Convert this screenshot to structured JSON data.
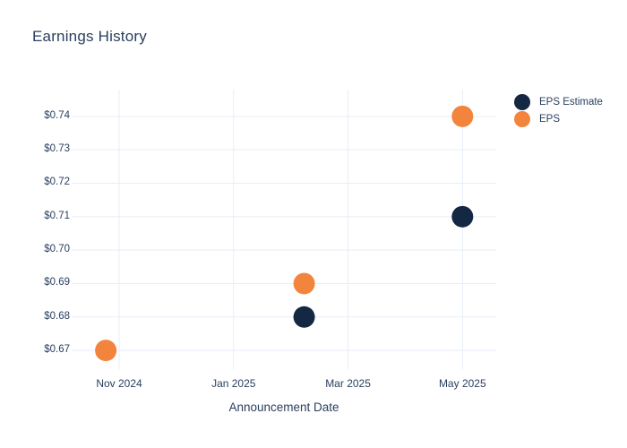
{
  "title": "Earnings History",
  "colors": {
    "background": "#ffffff",
    "text": "#2a3f5f",
    "gridline": "#e8edf6",
    "eps_estimate": "#142743",
    "eps": "#f3843e"
  },
  "legend": {
    "position": "top-right",
    "eps_estimate_label": "EPS Estimate",
    "eps_label": "EPS"
  },
  "chart_data": {
    "type": "scatter",
    "title": "Earnings History",
    "xlabel": "Announcement Date",
    "ylabel": "",
    "grid": true,
    "legend_position": "top-right",
    "marker_diameter_px": 24,
    "xticks": [
      {
        "months": 0,
        "label": "Nov 2024"
      },
      {
        "months": 2,
        "label": "Jan 2025"
      },
      {
        "months": 4,
        "label": "Mar 2025"
      },
      {
        "months": 6,
        "label": "May 2025"
      }
    ],
    "yticks": [
      {
        "value": 0.67,
        "label": "$0.67"
      },
      {
        "value": 0.68,
        "label": "$0.68"
      },
      {
        "value": 0.69,
        "label": "$0.69"
      },
      {
        "value": 0.7,
        "label": "$0.70"
      },
      {
        "value": 0.71,
        "label": "$0.71"
      },
      {
        "value": 0.72,
        "label": "$0.72"
      },
      {
        "value": 0.73,
        "label": "$0.73"
      },
      {
        "value": 0.74,
        "label": "$0.74"
      }
    ],
    "xlim_months": [
      -0.83,
      6.59
    ],
    "ylim": [
      0.6644,
      0.748
    ],
    "month_reference": "months measured from Nov 2024",
    "series": [
      {
        "name": "EPS Estimate",
        "color": "#142743",
        "points": [
          {
            "date": "2025-02-08",
            "value": 0.68
          },
          {
            "date": "2025-05-01",
            "value": 0.71
          }
        ]
      },
      {
        "name": "EPS",
        "color": "#f3843e",
        "points": [
          {
            "date": "2024-10-24",
            "value": 0.67
          },
          {
            "date": "2025-02-08",
            "value": 0.69
          },
          {
            "date": "2025-05-01",
            "value": 0.74
          }
        ]
      }
    ]
  }
}
